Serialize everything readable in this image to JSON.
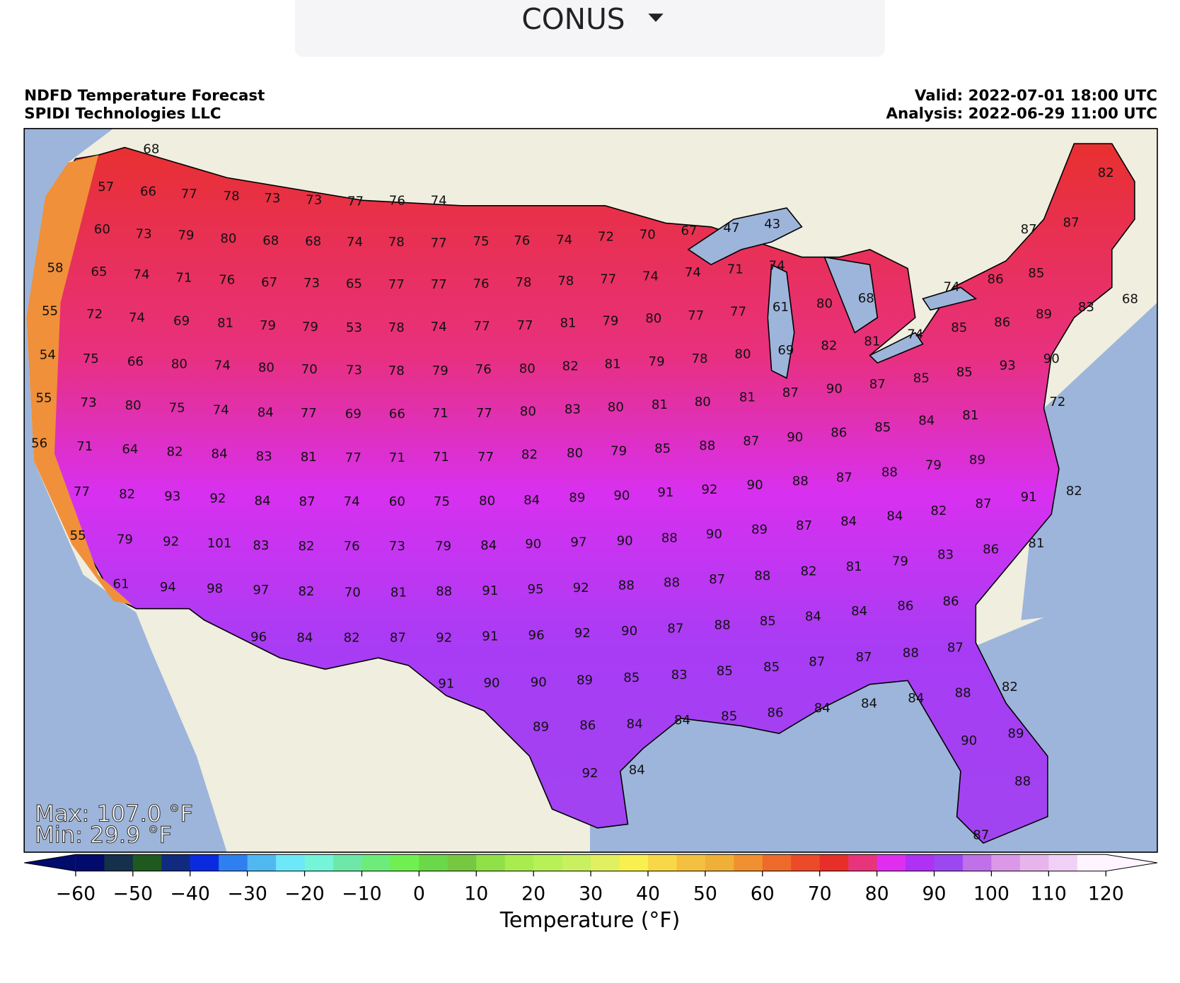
{
  "header": {
    "selector": "CONUS"
  },
  "map": {
    "title": "NDFD Temperature Forecast",
    "source": "SPIDI Technologies LLC",
    "valid": "Valid: 2022-07-01 18:00 UTC",
    "analysis": "Analysis: 2022-06-29 11:00 UTC",
    "max": "Max: 107.0 °F",
    "min": "Min: 29.9 °F",
    "stations": [
      68,
      57,
      66,
      77,
      78,
      73,
      73,
      77,
      76,
      74,
      60,
      73,
      79,
      80,
      68,
      68,
      74,
      78,
      77,
      75,
      76,
      74,
      72,
      70,
      67,
      47,
      43,
      58,
      65,
      74,
      71,
      76,
      67,
      73,
      65,
      77,
      77,
      76,
      78,
      78,
      77,
      74,
      74,
      71,
      74,
      55,
      72,
      74,
      69,
      81,
      79,
      79,
      53,
      78,
      74,
      77,
      77,
      81,
      79,
      80,
      77,
      77,
      61,
      80,
      68,
      82,
      87,
      87,
      86,
      85,
      74,
      89,
      83,
      68,
      85,
      86,
      54,
      75,
      66,
      80,
      74,
      80,
      70,
      73,
      78,
      79,
      76,
      80,
      82,
      81,
      79,
      78,
      80,
      69,
      82,
      81,
      74,
      85,
      85,
      93,
      90,
      55,
      73,
      80,
      75,
      74,
      84,
      77,
      69,
      66,
      71,
      77,
      80,
      83,
      80,
      81,
      80,
      81,
      87,
      90,
      87,
      72,
      84,
      81,
      56,
      71,
      64,
      82,
      84,
      83,
      81,
      77,
      71,
      71,
      77,
      82,
      80,
      79,
      85,
      88,
      87,
      90,
      86,
      85,
      89,
      79,
      88,
      87,
      88,
      90,
      92,
      91,
      82,
      91,
      87,
      82,
      84,
      84,
      87,
      89,
      77,
      82,
      93,
      92,
      84,
      87,
      74,
      60,
      75,
      80,
      84,
      89,
      90,
      55,
      79,
      92,
      101,
      83,
      82,
      76,
      73,
      79,
      84,
      90,
      97,
      90,
      88,
      90,
      81,
      86,
      83,
      79,
      81,
      82,
      88,
      61,
      94,
      98,
      97,
      82,
      70,
      81,
      88,
      91,
      95,
      92,
      88,
      88,
      87,
      86,
      86,
      84,
      84,
      85,
      88,
      87,
      96,
      84,
      82,
      87,
      92,
      91,
      96,
      92,
      90,
      88,
      87,
      87,
      87,
      85,
      85,
      83,
      85,
      89,
      90,
      90,
      91,
      82,
      88,
      84,
      84,
      84,
      86,
      85,
      84,
      84,
      86,
      89,
      89,
      90,
      92,
      84,
      88,
      87
    ]
  },
  "chart_data": {
    "type": "colorbar",
    "title": "Temperature (°F)",
    "bins": [
      -60,
      -55,
      -50,
      -45,
      -40,
      -35,
      -30,
      -25,
      -20,
      -15,
      -10,
      -5,
      0,
      5,
      10,
      15,
      20,
      25,
      30,
      35,
      40,
      45,
      50,
      55,
      60,
      65,
      70,
      75,
      80,
      85,
      90,
      95,
      100,
      105,
      110,
      115,
      120
    ],
    "colors": [
      "#000b6b",
      "#14304a",
      "#1e5a20",
      "#102a80",
      "#0a2ae0",
      "#2f7ff0",
      "#50b8f0",
      "#6ce8f8",
      "#74f4d8",
      "#6ee8a8",
      "#6eec7a",
      "#70f050",
      "#6ad848",
      "#76c840",
      "#90e048",
      "#a8ec50",
      "#b8f058",
      "#c8f060",
      "#e0f060",
      "#f8f050",
      "#f8d848",
      "#f4c040",
      "#f0b038",
      "#f09030",
      "#ee6a2a",
      "#ec4a28",
      "#e82e28",
      "#e8347a",
      "#e02ef0",
      "#b030f4",
      "#9c48f0",
      "#c070e8",
      "#dc98e8",
      "#e8b4ec",
      "#f0d0f4",
      "#fff4ff"
    ],
    "xlim": [
      -60,
      120
    ],
    "xticks": [
      {
        "value": -60,
        "label": "−60"
      },
      {
        "value": -50,
        "label": "−50"
      },
      {
        "value": -40,
        "label": "−40"
      },
      {
        "value": -30,
        "label": "−30"
      },
      {
        "value": -20,
        "label": "−20"
      },
      {
        "value": -10,
        "label": "−10"
      },
      0,
      10,
      20,
      30,
      40,
      50,
      60,
      70,
      80,
      90,
      100,
      110,
      120
    ]
  }
}
